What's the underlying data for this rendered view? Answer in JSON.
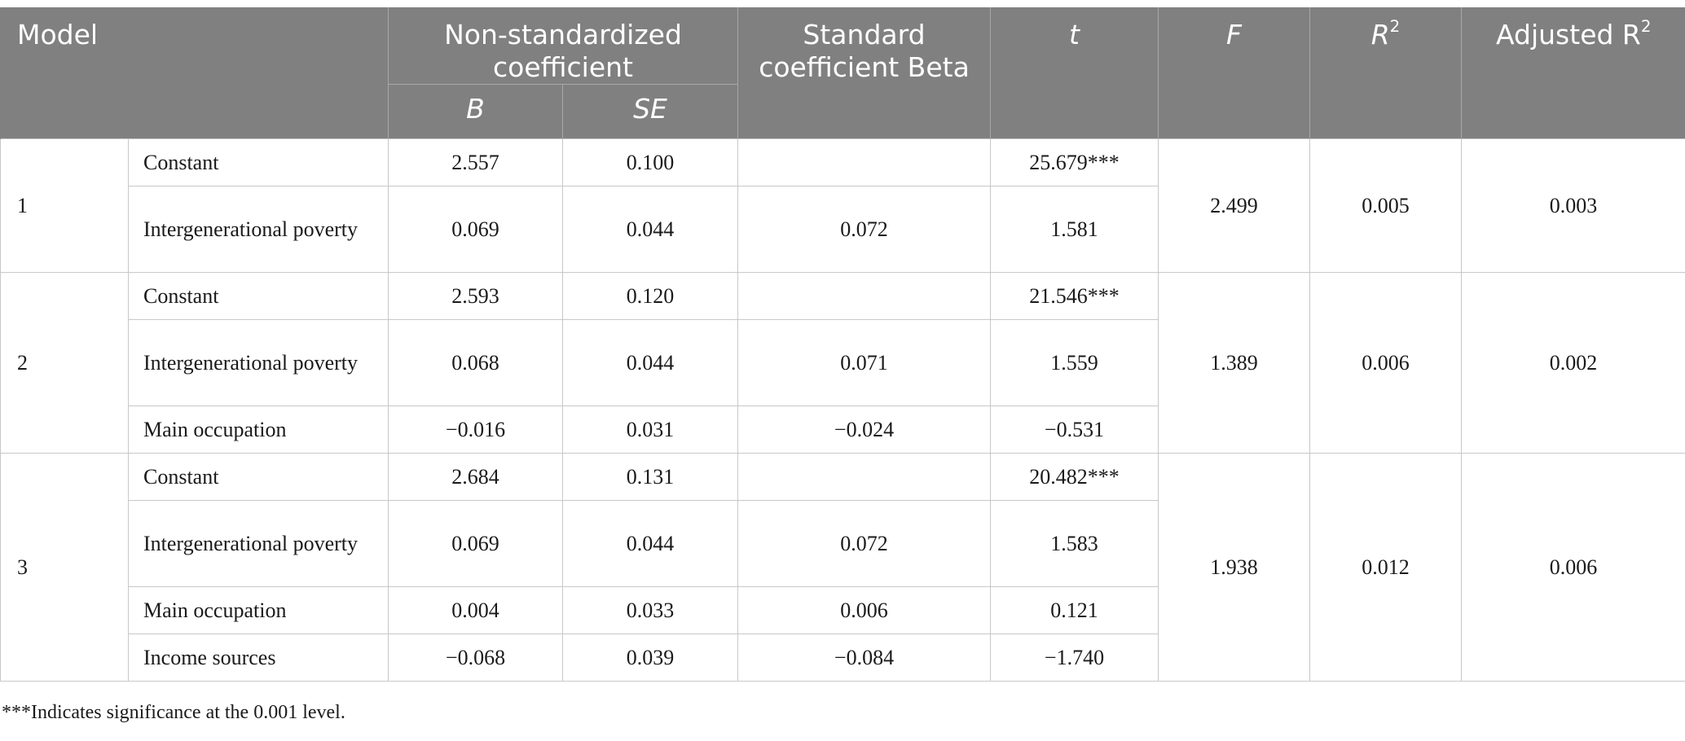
{
  "headers": {
    "model": "Model",
    "nonstd_coef": "Non-standardized coefficient",
    "b": "B",
    "se": "SE",
    "std_coef": "Standard coefficient Beta",
    "t": "t",
    "f": "F",
    "r2": "R",
    "r2_sup": "2",
    "adj_r2": "Adjusted R",
    "adj_r2_sup": "2"
  },
  "models": [
    {
      "label": "1",
      "f": "2.499",
      "r2": "0.005",
      "adj_r2": "0.003",
      "rows": [
        {
          "var": "Constant",
          "b": "2.557",
          "se": "0.100",
          "beta": "",
          "t": "25.679***"
        },
        {
          "var": "Intergenerational poverty",
          "b": "0.069",
          "se": "0.044",
          "beta": "0.072",
          "t": "1.581"
        }
      ]
    },
    {
      "label": "2",
      "f": "1.389",
      "r2": "0.006",
      "adj_r2": "0.002",
      "rows": [
        {
          "var": "Constant",
          "b": "2.593",
          "se": "0.120",
          "beta": "",
          "t": "21.546***"
        },
        {
          "var": "Intergenerational poverty",
          "b": "0.068",
          "se": "0.044",
          "beta": "0.071",
          "t": "1.559"
        },
        {
          "var": "Main occupation",
          "b": "−0.016",
          "se": "0.031",
          "beta": "−0.024",
          "t": "−0.531"
        }
      ]
    },
    {
      "label": "3",
      "f": "1.938",
      "r2": "0.012",
      "adj_r2": "0.006",
      "rows": [
        {
          "var": "Constant",
          "b": "2.684",
          "se": "0.131",
          "beta": "",
          "t": "20.482***"
        },
        {
          "var": "Intergenerational poverty",
          "b": "0.069",
          "se": "0.044",
          "beta": "0.072",
          "t": "1.583"
        },
        {
          "var": "Main occupation",
          "b": "0.004",
          "se": "0.033",
          "beta": "0.006",
          "t": "0.121"
        },
        {
          "var": "Income sources",
          "b": "−0.068",
          "se": "0.039",
          "beta": "−0.084",
          "t": "−1.740"
        }
      ]
    }
  ],
  "footnote": "***Indicates significance at the 0.001 level."
}
